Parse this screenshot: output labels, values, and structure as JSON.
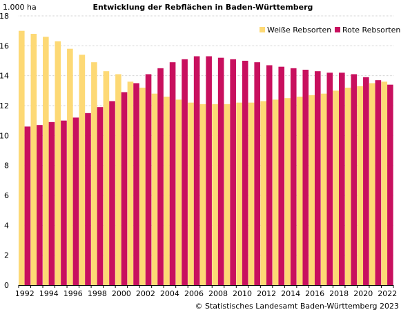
{
  "chart_data": {
    "type": "bar",
    "title": "Entwicklung der Rebflächen in Baden-Württemberg",
    "unit_label": "1.000 ha",
    "source": "© Statistisches Landesamt Baden-Württemberg 2023",
    "ylim": [
      0,
      18
    ],
    "yticks": [
      "0",
      "2",
      "4",
      "6",
      "8",
      "10",
      "12",
      "14",
      "16",
      "18"
    ],
    "grid": true,
    "legend_position": "top-right",
    "categories": [
      "1992",
      "1993",
      "1994",
      "1995",
      "1996",
      "1997",
      "1998",
      "1999",
      "2000",
      "2001",
      "2002",
      "2003",
      "2004",
      "2005",
      "2006",
      "2007",
      "2008",
      "2009",
      "2010",
      "2011",
      "2012",
      "2013",
      "2014",
      "2015",
      "2016",
      "2017",
      "2018",
      "2019",
      "2020",
      "2021",
      "2022"
    ],
    "xtick_labels": [
      "1992",
      "",
      "1994",
      "",
      "1996",
      "",
      "1998",
      "",
      "2000",
      "",
      "2002",
      "",
      "2004",
      "",
      "2006",
      "",
      "2008",
      "",
      "2010",
      "",
      "2012",
      "",
      "2014",
      "",
      "2016",
      "",
      "2018",
      "",
      "2020",
      "",
      "2022"
    ],
    "series": [
      {
        "name": "Weiße Rebsorten",
        "color": "#fdd975",
        "values": [
          17.0,
          16.8,
          16.6,
          16.3,
          15.8,
          15.4,
          14.9,
          14.3,
          14.1,
          13.6,
          13.2,
          12.8,
          12.6,
          12.4,
          12.2,
          12.1,
          12.1,
          12.1,
          12.2,
          12.2,
          12.3,
          12.4,
          12.5,
          12.6,
          12.7,
          12.8,
          13.0,
          13.2,
          13.3,
          13.5,
          13.6
        ]
      },
      {
        "name": "Rote Rebsorten",
        "color": "#c8105e",
        "values": [
          10.6,
          10.7,
          10.9,
          11.0,
          11.2,
          11.5,
          11.9,
          12.3,
          12.9,
          13.5,
          14.1,
          14.5,
          14.9,
          15.1,
          15.3,
          15.3,
          15.2,
          15.1,
          15.0,
          14.9,
          14.7,
          14.6,
          14.5,
          14.4,
          14.3,
          14.2,
          14.2,
          14.1,
          13.9,
          13.7,
          13.4
        ]
      }
    ]
  }
}
